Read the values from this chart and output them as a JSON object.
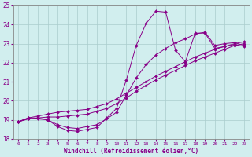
{
  "xlabel": "Windchill (Refroidissement éolien,°C)",
  "xlim": [
    -0.5,
    23.5
  ],
  "ylim": [
    18,
    25
  ],
  "xticks": [
    0,
    1,
    2,
    3,
    4,
    5,
    6,
    7,
    8,
    9,
    10,
    11,
    12,
    13,
    14,
    15,
    16,
    17,
    18,
    19,
    20,
    21,
    22,
    23
  ],
  "yticks": [
    18,
    19,
    20,
    21,
    22,
    23,
    24,
    25
  ],
  "bg_color": "#d1eeee",
  "line_color": "#880088",
  "grid_color": "#aacccc",
  "line1_x": [
    0,
    1,
    2,
    3,
    4,
    5,
    6,
    7,
    8,
    9,
    10,
    11,
    12,
    13,
    14,
    15,
    16,
    17,
    18,
    19,
    20,
    21,
    22,
    23
  ],
  "line1_y": [
    18.9,
    19.1,
    19.1,
    19.0,
    18.65,
    18.45,
    18.4,
    18.5,
    18.6,
    19.1,
    19.6,
    21.1,
    22.9,
    24.05,
    24.7,
    24.65,
    22.65,
    22.05,
    23.55,
    23.55,
    22.75,
    22.85,
    22.95,
    22.85
  ],
  "line2_x": [
    0,
    1,
    2,
    3,
    4,
    5,
    6,
    7,
    8,
    9,
    10,
    11,
    12,
    13,
    14,
    15,
    16,
    17,
    18,
    19,
    20,
    21,
    22,
    23
  ],
  "line2_y": [
    18.9,
    19.05,
    19.1,
    19.15,
    19.15,
    19.2,
    19.25,
    19.3,
    19.45,
    19.6,
    19.85,
    20.15,
    20.5,
    20.8,
    21.1,
    21.35,
    21.6,
    21.85,
    22.1,
    22.3,
    22.5,
    22.7,
    22.9,
    23.0
  ],
  "line3_x": [
    0,
    1,
    2,
    3,
    4,
    5,
    6,
    7,
    8,
    9,
    10,
    11,
    12,
    13,
    14,
    15,
    16,
    17,
    18,
    19,
    20,
    21,
    22,
    23
  ],
  "line3_y": [
    18.9,
    19.1,
    19.2,
    19.3,
    19.4,
    19.45,
    19.5,
    19.55,
    19.7,
    19.85,
    20.1,
    20.4,
    20.7,
    21.0,
    21.3,
    21.55,
    21.8,
    22.05,
    22.3,
    22.5,
    22.7,
    22.85,
    23.0,
    23.1
  ],
  "line4_x": [
    0,
    1,
    2,
    3,
    4,
    5,
    6,
    7,
    8,
    9,
    10,
    11,
    12,
    13,
    14,
    15,
    16,
    17,
    18,
    19,
    20,
    21,
    22,
    23
  ],
  "line4_y": [
    18.9,
    19.05,
    19.05,
    19.0,
    18.75,
    18.6,
    18.55,
    18.65,
    18.75,
    19.05,
    19.4,
    20.3,
    21.2,
    21.9,
    22.4,
    22.75,
    23.05,
    23.25,
    23.5,
    23.6,
    22.9,
    23.0,
    23.05,
    22.9
  ]
}
